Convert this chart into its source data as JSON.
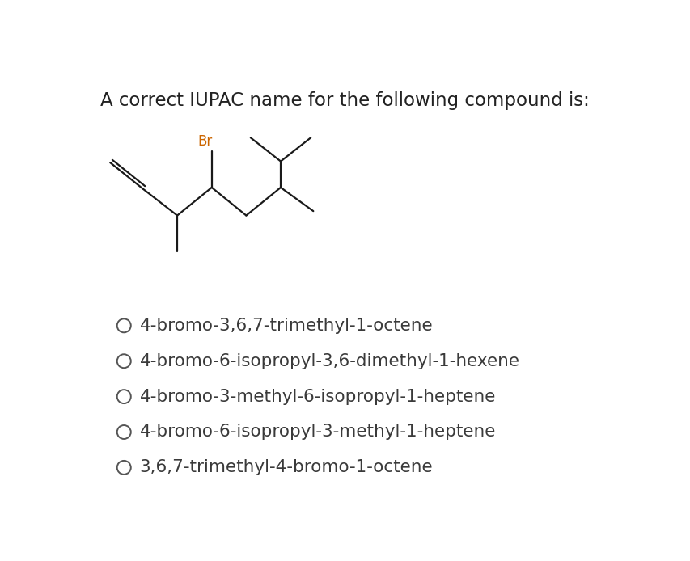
{
  "title": "A correct IUPAC name for the following compound is:",
  "title_fontsize": 16.5,
  "title_color": "#222222",
  "background_color": "#ffffff",
  "options": [
    "4-bromo-3,6,7-trimethyl-1-octene",
    "4-bromo-6-isopropyl-3,6-dimethyl-1-hexene",
    "4-bromo-3-methyl-6-isopropyl-1-heptene",
    "4-bromo-6-isopropyl-3-methyl-1-heptene",
    "3,6,7-trimethyl-4-bromo-1-octene"
  ],
  "option_fontsize": 15.5,
  "option_color": "#3a3a3a",
  "circle_color": "#555555",
  "structure_color": "#1a1a1a",
  "br_label": "Br",
  "br_color": "#cc6600",
  "br_fontsize": 12,
  "line_width": 1.6
}
